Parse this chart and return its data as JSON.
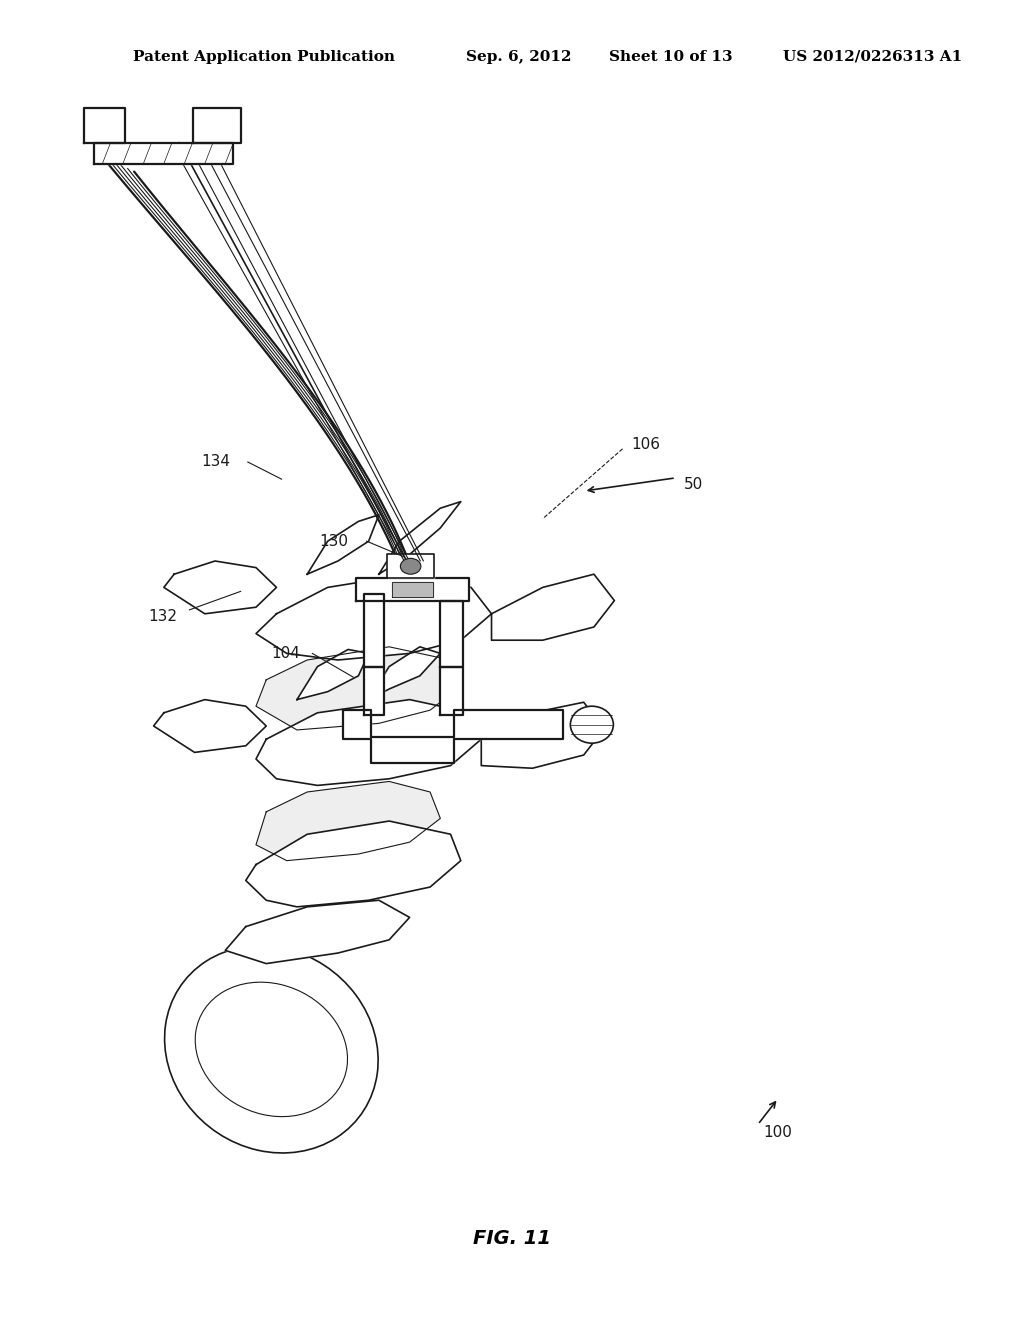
{
  "background_color": "#ffffff",
  "header_text": "Patent Application Publication",
  "header_date": "Sep. 6, 2012",
  "header_sheet": "Sheet 10 of 13",
  "header_patent": "US 2012/0226313 A1",
  "figure_label": "FIG. 11",
  "line_color": "#1a1a1a",
  "label_fontsize": 11,
  "header_fontsize": 11,
  "fig_label_fontsize": 14
}
